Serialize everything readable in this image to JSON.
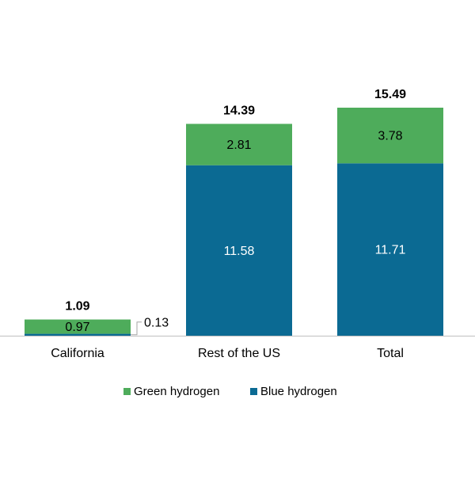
{
  "chart_data": {
    "type": "bar",
    "stacked": true,
    "categories": [
      "California",
      "Rest of the US",
      "Total"
    ],
    "series": [
      {
        "name": "Blue hydrogen",
        "values": [
          0.13,
          11.58,
          11.71
        ],
        "color": "#0b6a93"
      },
      {
        "name": "Green hydrogen",
        "values": [
          0.97,
          2.81,
          3.78
        ],
        "color": "#4eac5b"
      }
    ],
    "segment_labels": {
      "Blue hydrogen": [
        "0.13",
        "11.58",
        "11.71"
      ],
      "Green hydrogen": [
        "0.97",
        "2.81",
        "3.78"
      ]
    },
    "totals": [
      "1.09",
      "14.39",
      "15.49"
    ],
    "title": "",
    "xlabel": "",
    "ylabel": "",
    "ylim": [
      0,
      16
    ],
    "grid": false,
    "legend_position": "bottom"
  },
  "legend": {
    "green_label": "Green hydrogen",
    "blue_label": "Blue hydrogen"
  },
  "colors": {
    "green": "#4eac5b",
    "blue": "#0b6a93",
    "axis": "#bfbfbf",
    "text": "#000000",
    "callout_line": "#a6a6a6"
  }
}
